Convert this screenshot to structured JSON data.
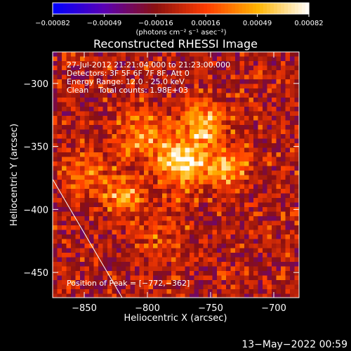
{
  "chart_data": {
    "type": "heatmap",
    "title": "Reconstructed RHESSI Image",
    "xlabel": "Heliocentric X (arcsec)",
    "ylabel": "Heliocentric Y (arcsec)",
    "xlim": [
      -875,
      -680
    ],
    "ylim": [
      -470,
      -275
    ],
    "x_ticks": [
      {
        "value": -850,
        "label": "−850"
      },
      {
        "value": -800,
        "label": "−800"
      },
      {
        "value": -750,
        "label": "−750"
      },
      {
        "value": -700,
        "label": "−700"
      }
    ],
    "y_ticks": [
      {
        "value": -300,
        "label": "−300"
      },
      {
        "value": -350,
        "label": "−350"
      },
      {
        "value": -400,
        "label": "−400"
      },
      {
        "value": -450,
        "label": "−450"
      }
    ],
    "colorbar": {
      "range": [
        -0.00082,
        0.00082
      ],
      "ticks": [
        {
          "value": -0.00082,
          "label": "−0.00082"
        },
        {
          "value": -0.00049,
          "label": "−0.00049"
        },
        {
          "value": -0.00016,
          "label": "−0.00016"
        },
        {
          "value": 0.00016,
          "label": "0.00016"
        },
        {
          "value": 0.00049,
          "label": "0.00049"
        },
        {
          "value": 0.00082,
          "label": "0.00082"
        }
      ],
      "unit": "(photons cm⁻² s⁻¹ asec⁻²)",
      "colormap": [
        "#0000ff",
        "#5a00b4",
        "#8a1010",
        "#ff3c00",
        "#ffb400",
        "#ffffff"
      ]
    },
    "annotations": [
      "27-Jul-2012 21:21:04.000 to 21:23:00.000",
      "Detectors: 3F 5F 6F 7F 8F, Att 0",
      "Energy Range: 12.0 - 25.0 keV",
      "Clean    Total counts: 1.98E+03"
    ],
    "peak_label": "Position of Peak = [−772,−362]",
    "peak": {
      "x": -772,
      "y": -362
    },
    "peak_value": 0.00082,
    "sources": [
      {
        "x": -772,
        "y": -362,
        "sigma": 13,
        "amp": 0.00082
      },
      {
        "x": -737,
        "y": -368,
        "sigma": 11,
        "amp": 0.00062
      },
      {
        "x": -755,
        "y": -332,
        "sigma": 12,
        "amp": 0.0006
      },
      {
        "x": -818,
        "y": -389,
        "sigma": 10,
        "amp": 0.00055
      },
      {
        "x": -805,
        "y": -340,
        "sigma": 15,
        "amp": 0.0004
      },
      {
        "x": -850,
        "y": -372,
        "sigma": 14,
        "amp": 0.00035
      },
      {
        "x": -790,
        "y": -418,
        "sigma": 16,
        "amp": 0.00022
      }
    ],
    "limb": {
      "x": [
        -875,
        -820
      ],
      "y": [
        -376,
        -470
      ]
    },
    "timestamp": "13−May−2022 00:59"
  }
}
